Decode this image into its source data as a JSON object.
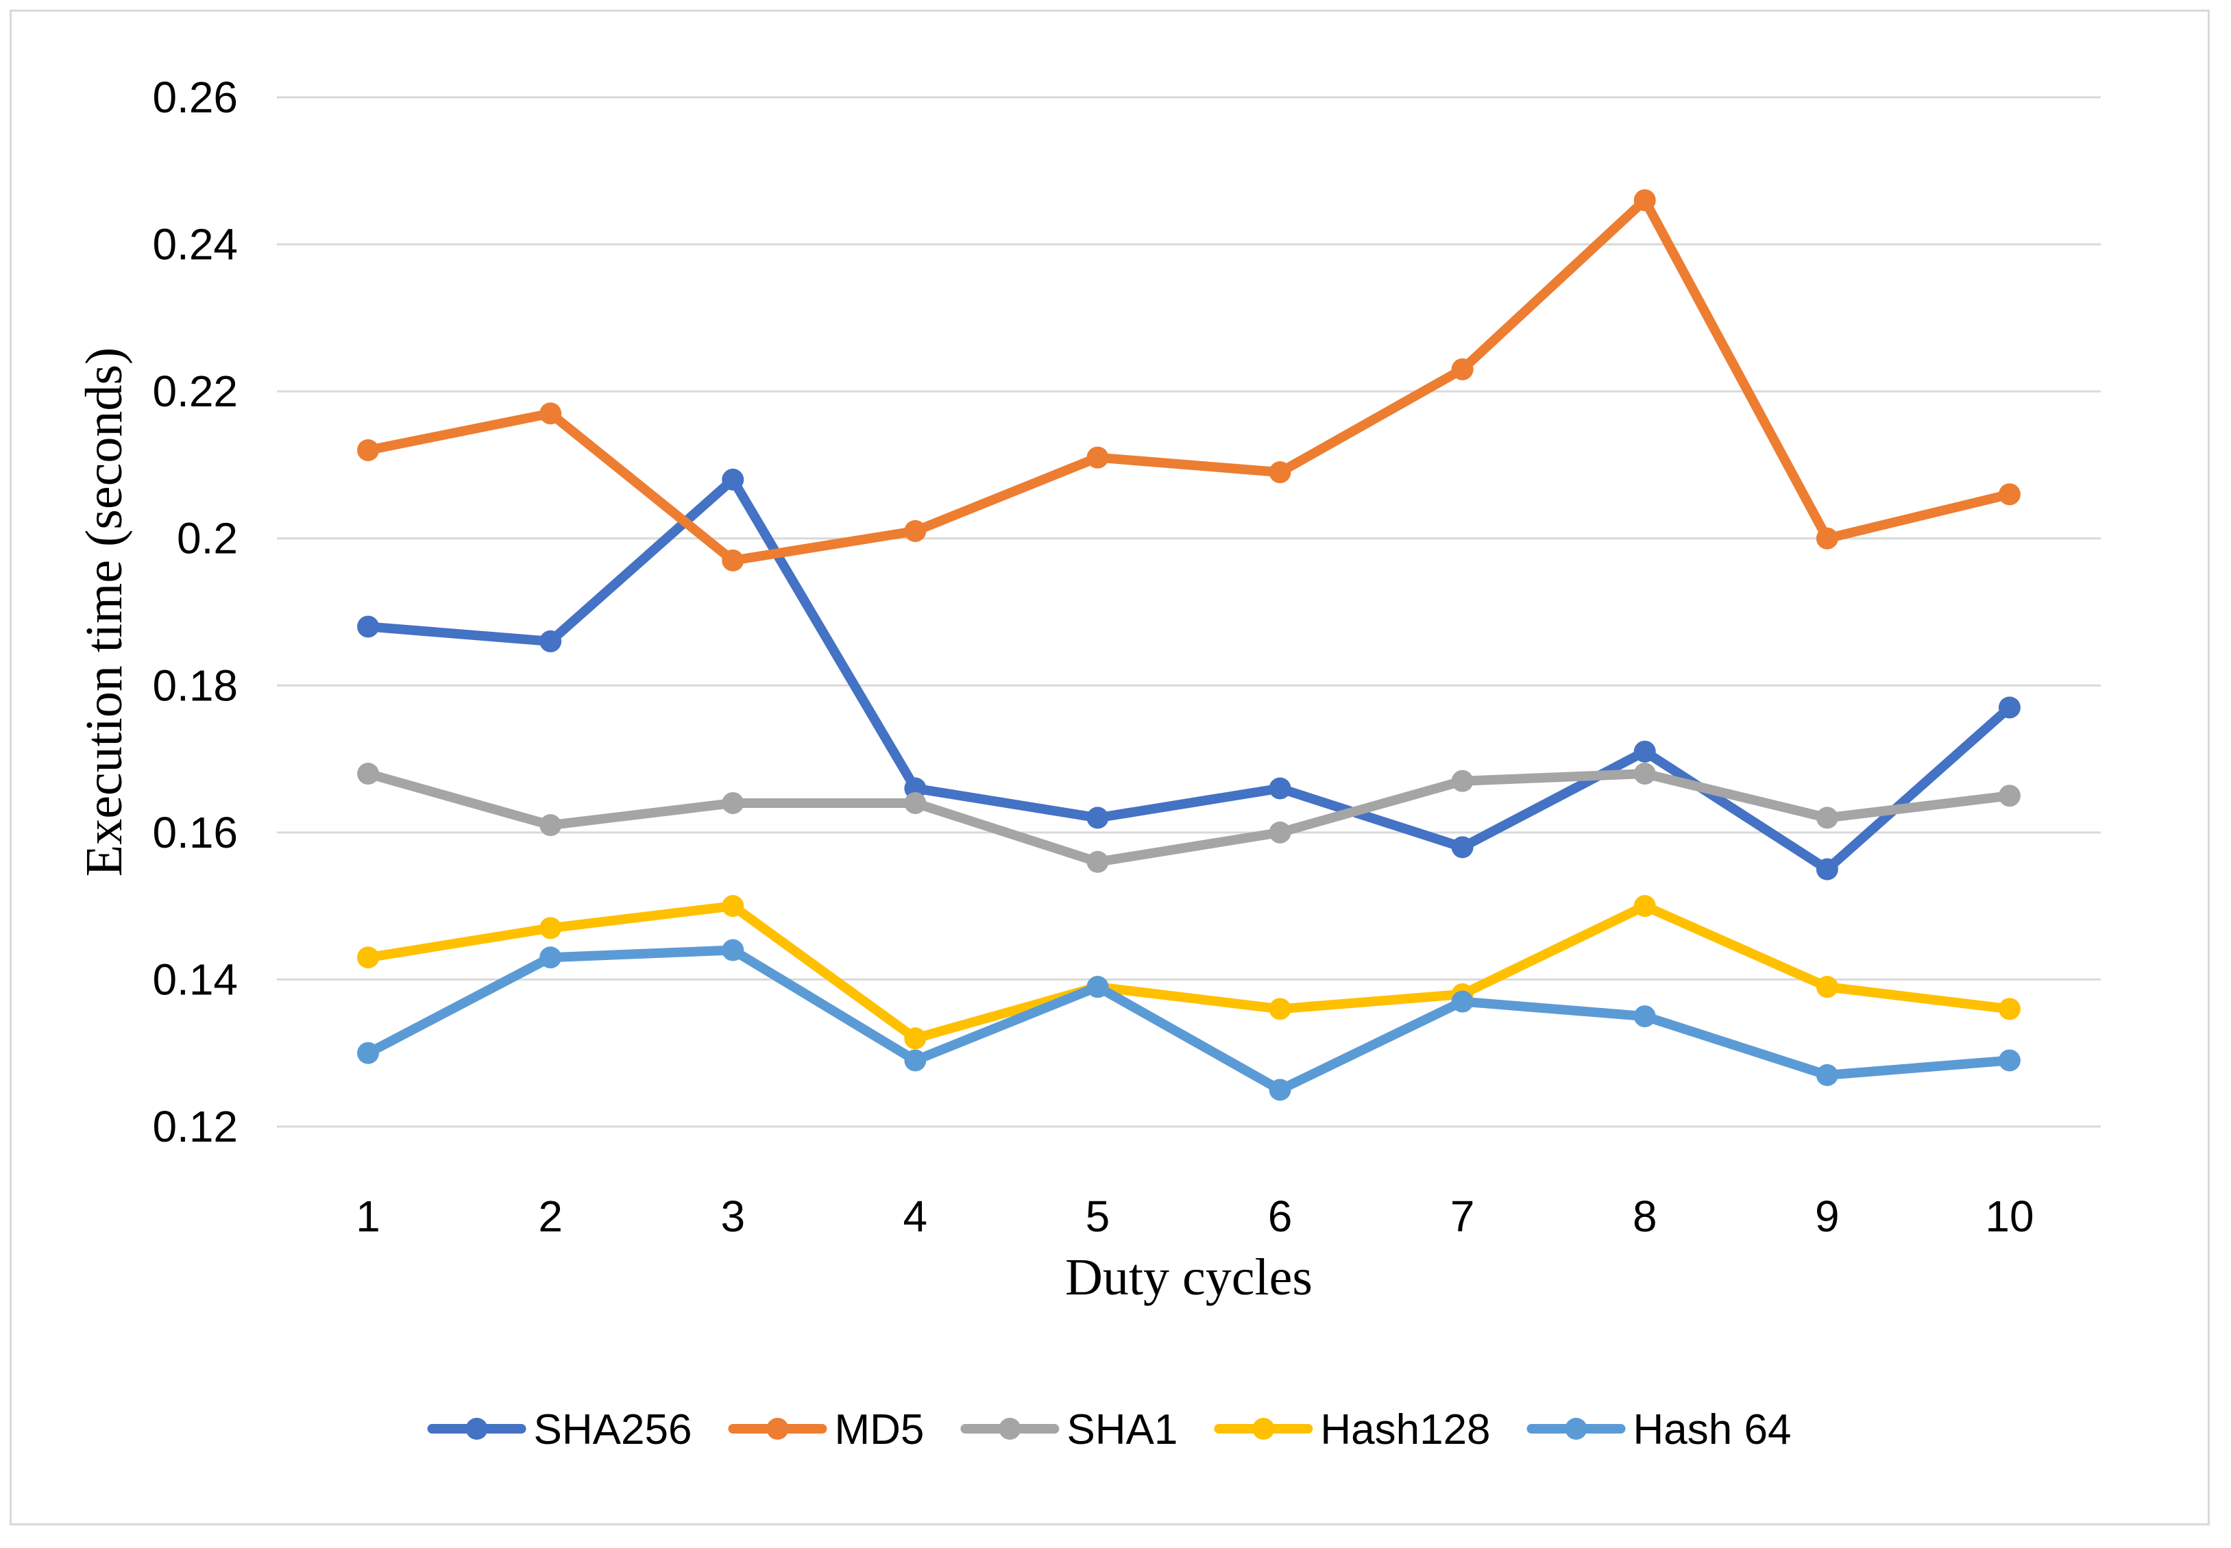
{
  "chart_data": {
    "type": "line",
    "title": "",
    "xlabel": "Duty cycles",
    "ylabel": "Execution time (seconds)",
    "ylim": [
      0.12,
      0.26
    ],
    "yticks": [
      0.12,
      0.14,
      0.16,
      0.18,
      0.2,
      0.22,
      0.24,
      0.26
    ],
    "ytick_labels": [
      "0.12",
      "0.14",
      "0.16",
      "0.18",
      "0.2",
      "0.22",
      "0.24",
      "0.26"
    ],
    "grid": true,
    "legend_position": "bottom",
    "categories": [
      "1",
      "2",
      "3",
      "4",
      "5",
      "6",
      "7",
      "8",
      "9",
      "10"
    ],
    "series": [
      {
        "name": "SHA256",
        "color": "#4472C4",
        "values": [
          0.188,
          0.186,
          0.208,
          0.166,
          0.162,
          0.166,
          0.158,
          0.171,
          0.155,
          0.177
        ]
      },
      {
        "name": "MD5",
        "color": "#ED7D31",
        "values": [
          0.212,
          0.217,
          0.197,
          0.201,
          0.211,
          0.209,
          0.223,
          0.246,
          0.2,
          0.206
        ]
      },
      {
        "name": "SHA1",
        "color": "#A5A5A5",
        "values": [
          0.168,
          0.161,
          0.164,
          0.164,
          0.156,
          0.16,
          0.167,
          0.168,
          0.162,
          0.165
        ]
      },
      {
        "name": "Hash128",
        "color": "#FFC000",
        "values": [
          0.143,
          0.147,
          0.15,
          0.132,
          0.139,
          0.136,
          0.138,
          0.15,
          0.139,
          0.136
        ]
      },
      {
        "name": "Hash 64",
        "color": "#5B9BD5",
        "values": [
          0.13,
          0.143,
          0.144,
          0.129,
          0.139,
          0.125,
          0.137,
          0.135,
          0.127,
          0.129
        ]
      }
    ]
  }
}
